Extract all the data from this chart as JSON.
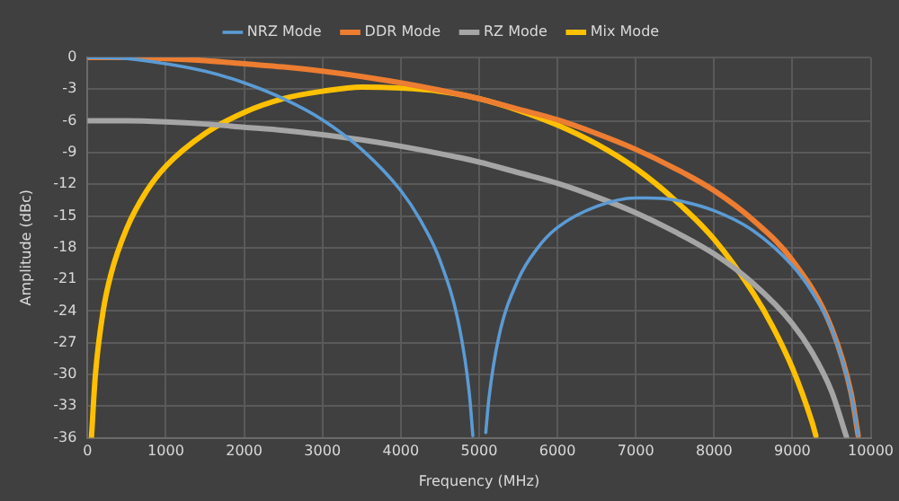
{
  "chart_data": {
    "type": "line",
    "xlabel": "Frequency (MHz)",
    "ylabel": "Amplitude (dBc)",
    "xlim": [
      0,
      10000
    ],
    "xticks": [
      0,
      1000,
      2000,
      3000,
      4000,
      5000,
      6000,
      7000,
      8000,
      9000,
      10000
    ],
    "ylim": [
      -36,
      0
    ],
    "yticks": [
      0,
      -3,
      -6,
      -9,
      -12,
      -15,
      -18,
      -21,
      -24,
      -27,
      -30,
      -33,
      -36
    ],
    "grid": true,
    "legend": "top",
    "marker": "none",
    "line_style": "solid",
    "series": [
      {
        "name": "NRZ Mode",
        "color": "#5b9bd5",
        "x": [
          0,
          500,
          1000,
          1500,
          2000,
          2500,
          3000,
          3500,
          4000,
          4250,
          4500,
          4750,
          4875,
          4920,
          5000,
          5085,
          5125,
          5250,
          5500,
          5750,
          6000,
          6500,
          7000,
          7150,
          7500,
          8000,
          8500,
          9000,
          9250,
          9500,
          9750,
          9840
        ],
        "values": [
          0,
          -0.1,
          -0.6,
          -1.3,
          -2.4,
          -3.9,
          -5.9,
          -8.7,
          -12.6,
          -15.4,
          -19.2,
          -25.6,
          -31.8,
          -35.8,
          null,
          -35.5,
          -32.3,
          -26.5,
          -21.0,
          -18.0,
          -16.1,
          -14.1,
          -13.3,
          -13.3,
          -13.5,
          -14.5,
          -16.4,
          -19.7,
          -22.2,
          -25.7,
          -31.9,
          -35.8
        ]
      },
      {
        "name": "DDR Mode",
        "color": "#ed7d31",
        "x": [
          0,
          500,
          1000,
          1500,
          2000,
          2500,
          3000,
          3500,
          4000,
          4500,
          5000,
          5500,
          6000,
          6500,
          7000,
          7500,
          8000,
          8500,
          9000,
          9500,
          9750,
          9840
        ],
        "values": [
          0,
          0,
          -0.1,
          -0.3,
          -0.6,
          -0.9,
          -1.3,
          -1.8,
          -2.4,
          -3.1,
          -3.9,
          -4.9,
          -5.9,
          -7.2,
          -8.7,
          -10.5,
          -12.6,
          -15.4,
          -19.2,
          -25.6,
          -31.8,
          -35.8
        ]
      },
      {
        "name": "RZ Mode",
        "color": "#a5a5a5",
        "x": [
          0,
          500,
          1000,
          1500,
          2000,
          2500,
          3000,
          3500,
          4000,
          4500,
          5000,
          5500,
          6000,
          6500,
          7000,
          7500,
          8000,
          8500,
          9000,
          9250,
          9500,
          9690
        ],
        "values": [
          -6,
          -6,
          -6.1,
          -6.3,
          -6.6,
          -6.9,
          -7.3,
          -7.8,
          -8.4,
          -9.1,
          -9.9,
          -10.9,
          -11.9,
          -13.2,
          -14.7,
          -16.5,
          -18.6,
          -21.4,
          -25.2,
          -27.9,
          -31.6,
          -35.9
        ]
      },
      {
        "name": "Mix Mode",
        "color": "#ffc000",
        "x": [
          51,
          100,
          200,
          300,
          500,
          750,
          1000,
          1500,
          2000,
          2500,
          3000,
          3500,
          4000,
          4500,
          5000,
          5500,
          6000,
          6500,
          7000,
          7500,
          8000,
          8500,
          8750,
          9000,
          9250,
          9300
        ],
        "values": [
          -35.9,
          -30.1,
          -24.0,
          -20.5,
          -16.2,
          -12.7,
          -10.3,
          -7.2,
          -5.2,
          -3.9,
          -3.2,
          -2.8,
          -2.9,
          -3.2,
          -3.9,
          -5.0,
          -6.4,
          -8.2,
          -10.5,
          -13.5,
          -17.2,
          -22.3,
          -25.5,
          -29.4,
          -34.5,
          -35.8
        ]
      }
    ]
  }
}
